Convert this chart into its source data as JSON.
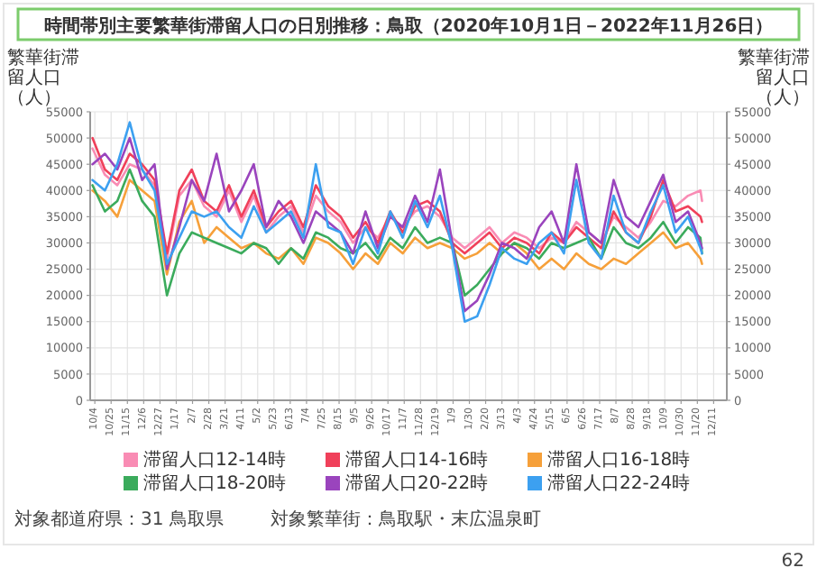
{
  "chart_data": {
    "type": "line",
    "title": "時間帯別主要繁華街滞留人口の日別推移：鳥取（2020年10月1日－2022年11月26日）",
    "ylabel": "繁華街滞留人口（人）",
    "y2label": "繁華街滞留人口（人）",
    "annotations": [
      "対象都道府県：31 鳥取県",
      "対象繁華街：鳥取駅・末広温泉町",
      "62"
    ],
    "x": [
      "2020-10-01",
      "2020-10-17",
      "2020-11-02",
      "2020-11-18",
      "2020-12-04",
      "2020-12-20",
      "2021-01-05",
      "2021-01-21",
      "2021-02-06",
      "2021-02-22",
      "2021-03-10",
      "2021-03-26",
      "2021-04-11",
      "2021-04-27",
      "2021-05-13",
      "2021-05-29",
      "2021-06-14",
      "2021-06-30",
      "2021-07-16",
      "2021-08-01",
      "2021-08-17",
      "2021-09-02",
      "2021-09-18",
      "2021-10-04",
      "2021-10-20",
      "2021-11-05",
      "2021-11-21",
      "2021-12-07",
      "2021-12-23",
      "2022-01-08",
      "2022-01-24",
      "2022-02-09",
      "2022-02-25",
      "2022-03-13",
      "2022-03-29",
      "2022-04-14",
      "2022-04-30",
      "2022-05-16",
      "2022-06-01",
      "2022-06-17",
      "2022-07-03",
      "2022-07-19",
      "2022-08-04",
      "2022-08-20",
      "2022-09-05",
      "2022-09-21",
      "2022-10-07",
      "2022-10-23",
      "2022-11-08",
      "2022-11-24",
      "2022-11-26"
    ],
    "series": [
      {
        "name": "滞留人口12-14時",
        "color": "#f98cb4",
        "values": [
          48000,
          43000,
          41000,
          45000,
          44000,
          41000,
          27000,
          39000,
          42000,
          37000,
          35000,
          40000,
          34000,
          39000,
          32000,
          35000,
          37000,
          32000,
          39000,
          36000,
          34000,
          30000,
          33000,
          31000,
          35000,
          33000,
          36000,
          37000,
          35000,
          31000,
          29000,
          31000,
          33000,
          30000,
          32000,
          31000,
          29000,
          31000,
          30000,
          34000,
          32000,
          30000,
          35000,
          33000,
          31000,
          34000,
          38000,
          37000,
          39000,
          40000,
          38000
        ]
      },
      {
        "name": "滞留人口14-16時",
        "color": "#f0405a",
        "values": [
          50000,
          44000,
          42000,
          47000,
          45000,
          42000,
          28000,
          40000,
          44000,
          38000,
          36000,
          41000,
          35000,
          40000,
          33000,
          36000,
          38000,
          33000,
          41000,
          37000,
          35000,
          31000,
          34000,
          30000,
          36000,
          32000,
          37000,
          38000,
          36000,
          30000,
          28000,
          30000,
          32000,
          29000,
          31000,
          30000,
          28000,
          32000,
          30000,
          33000,
          31000,
          29000,
          36000,
          32000,
          30000,
          35000,
          42000,
          36000,
          37000,
          35000,
          34000
        ]
      },
      {
        "name": "滞留人口16-18時",
        "color": "#f6a03a",
        "values": [
          40000,
          38000,
          35000,
          42000,
          40000,
          38000,
          24000,
          34000,
          38000,
          30000,
          33000,
          31000,
          29000,
          30000,
          28000,
          27000,
          29000,
          26000,
          31000,
          30000,
          28000,
          25000,
          28000,
          26000,
          30000,
          28000,
          31000,
          29000,
          30000,
          29000,
          27000,
          28000,
          30000,
          28000,
          30000,
          28000,
          25000,
          27000,
          25000,
          28000,
          26000,
          25000,
          27000,
          26000,
          28000,
          30000,
          32000,
          29000,
          30000,
          27000,
          26000
        ]
      },
      {
        "name": "滞留人口18-20時",
        "color": "#3bab5c",
        "values": [
          41000,
          36000,
          38000,
          44000,
          38000,
          35000,
          20000,
          28000,
          32000,
          31000,
          30000,
          29000,
          28000,
          30000,
          29000,
          26000,
          29000,
          27000,
          32000,
          31000,
          29000,
          28000,
          30000,
          27000,
          31000,
          29000,
          33000,
          30000,
          31000,
          30000,
          20000,
          22000,
          25000,
          28000,
          30000,
          29000,
          27000,
          30000,
          29000,
          30000,
          31000,
          27000,
          33000,
          30000,
          29000,
          31000,
          34000,
          30000,
          33000,
          31000,
          28000
        ]
      },
      {
        "name": "滞留人口20-22時",
        "color": "#9a44bd",
        "values": [
          45000,
          47000,
          44000,
          50000,
          42000,
          45000,
          25000,
          33000,
          42000,
          38000,
          47000,
          36000,
          40000,
          45000,
          33000,
          38000,
          35000,
          30000,
          36000,
          34000,
          32000,
          28000,
          36000,
          29000,
          35000,
          33000,
          39000,
          34000,
          44000,
          30000,
          17000,
          19000,
          24000,
          30000,
          29000,
          27000,
          33000,
          36000,
          30000,
          45000,
          32000,
          30000,
          42000,
          35000,
          33000,
          38000,
          43000,
          34000,
          36000,
          30000,
          29000
        ]
      },
      {
        "name": "滞留人口22-24時",
        "color": "#3ca0f0",
        "values": [
          42000,
          40000,
          45000,
          53000,
          44000,
          40000,
          26000,
          31000,
          36000,
          35000,
          36000,
          33000,
          31000,
          37000,
          32000,
          34000,
          36000,
          31000,
          45000,
          33000,
          32000,
          26000,
          33000,
          28000,
          36000,
          31000,
          38000,
          33000,
          39000,
          29000,
          15000,
          16000,
          22000,
          29000,
          27000,
          26000,
          30000,
          32000,
          28000,
          42000,
          30000,
          27000,
          39000,
          32000,
          30000,
          36000,
          41000,
          32000,
          35000,
          29000,
          28000
        ]
      }
    ],
    "xlim": [
      "2020-09-28",
      "2022-12-28"
    ],
    "xticks": [
      {
        "value": "2020-10-04",
        "label": "10/4"
      },
      {
        "value": "2020-10-25",
        "label": "10/25"
      },
      {
        "value": "2020-11-15",
        "label": "11/15"
      },
      {
        "value": "2020-12-06",
        "label": "12/6"
      },
      {
        "value": "2020-12-27",
        "label": "12/27"
      },
      {
        "value": "2021-01-17",
        "label": "1/17"
      },
      {
        "value": "2021-02-07",
        "label": "2/7"
      },
      {
        "value": "2021-02-28",
        "label": "2/28"
      },
      {
        "value": "2021-03-21",
        "label": "3/21"
      },
      {
        "value": "2021-04-11",
        "label": "4/11"
      },
      {
        "value": "2021-05-02",
        "label": "5/2"
      },
      {
        "value": "2021-05-23",
        "label": "5/23"
      },
      {
        "value": "2021-06-13",
        "label": "6/13"
      },
      {
        "value": "2021-07-04",
        "label": "7/4"
      },
      {
        "value": "2021-07-25",
        "label": "7/25"
      },
      {
        "value": "2021-08-15",
        "label": "8/15"
      },
      {
        "value": "2021-09-05",
        "label": "9/5"
      },
      {
        "value": "2021-09-26",
        "label": "9/26"
      },
      {
        "value": "2021-10-17",
        "label": "10/17"
      },
      {
        "value": "2021-11-07",
        "label": "11/7"
      },
      {
        "value": "2021-11-28",
        "label": "11/28"
      },
      {
        "value": "2021-12-19",
        "label": "12/19"
      },
      {
        "value": "2022-01-09",
        "label": "1/9"
      },
      {
        "value": "2022-01-30",
        "label": "1/30"
      },
      {
        "value": "2022-02-20",
        "label": "2/20"
      },
      {
        "value": "2022-03-13",
        "label": "3/13"
      },
      {
        "value": "2022-04-03",
        "label": "4/3"
      },
      {
        "value": "2022-04-24",
        "label": "4/24"
      },
      {
        "value": "2022-05-15",
        "label": "5/15"
      },
      {
        "value": "2022-06-05",
        "label": "6/5"
      },
      {
        "value": "2022-06-26",
        "label": "6/26"
      },
      {
        "value": "2022-07-17",
        "label": "7/17"
      },
      {
        "value": "2022-08-07",
        "label": "8/7"
      },
      {
        "value": "2022-08-28",
        "label": "8/28"
      },
      {
        "value": "2022-09-18",
        "label": "9/18"
      },
      {
        "value": "2022-10-09",
        "label": "10/9"
      },
      {
        "value": "2022-10-30",
        "label": "10/30"
      },
      {
        "value": "2022-11-20",
        "label": "11/20"
      },
      {
        "value": "2022-12-11",
        "label": "12/11"
      }
    ],
    "ylim": [
      0,
      55000
    ],
    "yticks": [
      0,
      5000,
      10000,
      15000,
      20000,
      25000,
      30000,
      35000,
      40000,
      45000,
      50000,
      55000
    ],
    "y2lim": [
      0,
      55000
    ],
    "y2ticks": [
      0,
      5000,
      10000,
      15000,
      20000,
      25000,
      30000,
      35000,
      40000,
      45000,
      50000,
      55000
    ],
    "grid": true,
    "legend": "bottom"
  }
}
